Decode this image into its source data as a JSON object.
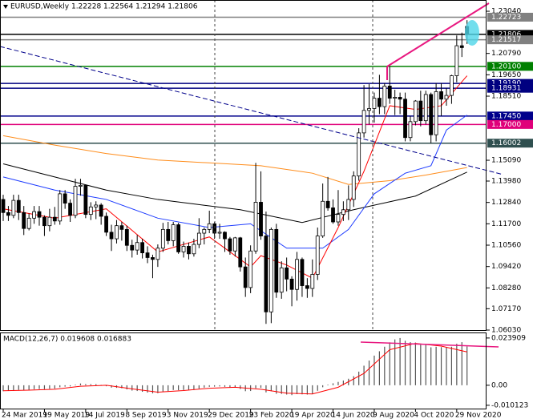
{
  "chart_data": {
    "type": "candlestick",
    "title": "EURUSD,Weekly 1.22228 1.22564 1.21294 1.21806",
    "ylim": [
      1.0603,
      1.2364
    ],
    "yticks": [
      {
        "value": 1.2304,
        "label": "1.23040"
      },
      {
        "value": 1.2079,
        "label": "1.20790"
      },
      {
        "value": 1.1965,
        "label": "1.19650"
      },
      {
        "value": 1.1851,
        "label": "1.18510"
      },
      {
        "value": 1.1509,
        "label": "1.15090"
      },
      {
        "value": 1.1398,
        "label": "1.13980"
      },
      {
        "value": 1.1284,
        "label": "1.12840"
      },
      {
        "value": 1.117,
        "label": "1.11700"
      },
      {
        "value": 1.1056,
        "label": "1.10560"
      },
      {
        "value": 1.0942,
        "label": "1.09420"
      },
      {
        "value": 1.0828,
        "label": "1.08280"
      },
      {
        "value": 1.0717,
        "label": "1.07170"
      },
      {
        "value": 1.0603,
        "label": "1.06030"
      }
    ],
    "levels": [
      {
        "value": 1.22723,
        "color": "#808080"
      },
      {
        "value": 1.21806,
        "color": "#000000"
      },
      {
        "value": 1.21517,
        "color": "#808080"
      },
      {
        "value": 1.201,
        "label": "1.20100",
        "color": "#008000"
      },
      {
        "value": 1.1919,
        "label": "1.19190",
        "color": "#000080"
      },
      {
        "value": 1.18931,
        "color": "#000080"
      },
      {
        "value": 1.1745,
        "label": "1.17450",
        "color": "#00008b"
      },
      {
        "value": 1.17,
        "label": "1.17000",
        "color": "#e0007a"
      },
      {
        "value": 1.16002,
        "color": "#2f4f4f"
      }
    ],
    "xticks": [
      {
        "value": 0,
        "label": "24 Mar 2019"
      },
      {
        "value": 8,
        "label": "19 May 2019"
      },
      {
        "value": 16,
        "label": "14 Jul 2019"
      },
      {
        "value": 24,
        "label": "8 Sep 2019"
      },
      {
        "value": 32,
        "label": "3 Nov 2019"
      },
      {
        "value": 40,
        "label": "29 Dec 2019"
      },
      {
        "value": 48,
        "label": "23 Feb 2020"
      },
      {
        "value": 56,
        "label": "19 Apr 2020"
      },
      {
        "value": 64,
        "label": "14 Jun 2020"
      },
      {
        "value": 72,
        "label": "9 Aug 2020"
      },
      {
        "value": 80,
        "label": "4 Oct 2020"
      },
      {
        "value": 88,
        "label": "29 Nov 2020"
      }
    ],
    "candles": [
      [
        1.13,
        1.1325,
        1.1185,
        1.123
      ],
      [
        1.123,
        1.1265,
        1.1185,
        1.1215
      ],
      [
        1.1215,
        1.1325,
        1.12,
        1.1295
      ],
      [
        1.1295,
        1.1325,
        1.119,
        1.123
      ],
      [
        1.123,
        1.1265,
        1.111,
        1.1145
      ],
      [
        1.1145,
        1.1225,
        1.1135,
        1.12
      ],
      [
        1.12,
        1.1265,
        1.117,
        1.1235
      ],
      [
        1.1235,
        1.1265,
        1.116,
        1.1205
      ],
      [
        1.1205,
        1.1215,
        1.1105,
        1.116
      ],
      [
        1.116,
        1.125,
        1.113,
        1.1205
      ],
      [
        1.1205,
        1.126,
        1.1165,
        1.1185
      ],
      [
        1.1185,
        1.135,
        1.1165,
        1.133
      ],
      [
        1.133,
        1.135,
        1.125,
        1.128
      ],
      [
        1.128,
        1.13,
        1.118,
        1.1215
      ],
      [
        1.1215,
        1.141,
        1.12,
        1.137
      ],
      [
        1.137,
        1.141,
        1.132,
        1.1375
      ],
      [
        1.1375,
        1.138,
        1.12,
        1.122
      ],
      [
        1.122,
        1.1285,
        1.119,
        1.126
      ],
      [
        1.126,
        1.129,
        1.1195,
        1.127
      ],
      [
        1.127,
        1.128,
        1.1165,
        1.121
      ],
      [
        1.121,
        1.123,
        1.1105,
        1.1125
      ],
      [
        1.1125,
        1.1165,
        1.1025,
        1.109
      ],
      [
        1.109,
        1.119,
        1.1065,
        1.116
      ],
      [
        1.116,
        1.118,
        1.108,
        1.114
      ],
      [
        1.114,
        1.116,
        1.1025,
        1.1055
      ],
      [
        1.1055,
        1.1085,
        1.099,
        1.103
      ],
      [
        1.103,
        1.111,
        1.1005,
        1.107
      ],
      [
        1.107,
        1.109,
        1.0985,
        1.1015
      ],
      [
        1.1015,
        1.105,
        1.096,
        1.099
      ],
      [
        1.099,
        1.1005,
        1.088,
        1.098
      ],
      [
        1.098,
        1.106,
        1.094,
        1.104
      ],
      [
        1.104,
        1.1175,
        1.102,
        1.114
      ],
      [
        1.114,
        1.118,
        1.106,
        1.108
      ],
      [
        1.108,
        1.118,
        1.105,
        1.1165
      ],
      [
        1.1165,
        1.1175,
        1.101,
        1.102
      ],
      [
        1.102,
        1.1075,
        1.099,
        1.105
      ],
      [
        1.105,
        1.107,
        1.098,
        1.101
      ],
      [
        1.101,
        1.109,
        1.0995,
        1.106
      ],
      [
        1.106,
        1.12,
        1.104,
        1.112
      ],
      [
        1.112,
        1.115,
        1.106,
        1.114
      ],
      [
        1.114,
        1.124,
        1.112,
        1.117
      ],
      [
        1.117,
        1.118,
        1.109,
        1.112
      ],
      [
        1.112,
        1.117,
        1.109,
        1.1125
      ],
      [
        1.1125,
        1.113,
        1.102,
        1.109
      ],
      [
        1.109,
        1.11,
        1.1005,
        1.1025
      ],
      [
        1.1025,
        1.11,
        1.0995,
        1.1095
      ],
      [
        1.1095,
        1.11,
        1.0915,
        1.094
      ],
      [
        1.094,
        1.099,
        1.078,
        1.083
      ],
      [
        1.083,
        1.1055,
        1.08,
        1.1025
      ],
      [
        1.1025,
        1.1495,
        1.101,
        1.1285
      ],
      [
        1.1285,
        1.145,
        1.1085,
        1.1105
      ],
      [
        1.1105,
        1.1235,
        1.0636,
        1.07
      ],
      [
        1.07,
        1.115,
        1.064,
        1.114
      ],
      [
        1.114,
        1.117,
        1.0775,
        1.0805
      ],
      [
        1.0805,
        1.097,
        1.077,
        1.0935
      ],
      [
        1.0935,
        1.099,
        1.081,
        1.0875
      ],
      [
        1.0875,
        1.089,
        1.073,
        1.082
      ],
      [
        1.082,
        1.102,
        1.076,
        1.098
      ],
      [
        1.098,
        1.099,
        1.078,
        1.084
      ],
      [
        1.084,
        1.088,
        1.0775,
        1.0825
      ],
      [
        1.0825,
        1.098,
        1.078,
        1.09
      ],
      [
        1.09,
        1.115,
        1.087,
        1.1105
      ],
      [
        1.1105,
        1.1385,
        1.1095,
        1.129
      ],
      [
        1.129,
        1.142,
        1.124,
        1.1255
      ],
      [
        1.1255,
        1.13,
        1.117,
        1.118
      ],
      [
        1.118,
        1.135,
        1.116,
        1.122
      ],
      [
        1.122,
        1.129,
        1.1185,
        1.1245
      ],
      [
        1.1245,
        1.1375,
        1.119,
        1.13
      ],
      [
        1.13,
        1.145,
        1.126,
        1.1425
      ],
      [
        1.1425,
        1.168,
        1.14,
        1.1655
      ],
      [
        1.1655,
        1.191,
        1.163,
        1.1775
      ],
      [
        1.1775,
        1.1915,
        1.17,
        1.1785
      ],
      [
        1.1785,
        1.187,
        1.171,
        1.184
      ],
      [
        1.184,
        1.1965,
        1.1755,
        1.1795
      ],
      [
        1.1795,
        1.192,
        1.1755,
        1.1905
      ],
      [
        1.1905,
        1.2011,
        1.181,
        1.184
      ],
      [
        1.184,
        1.1885,
        1.175,
        1.1845
      ],
      [
        1.1845,
        1.187,
        1.1755,
        1.1835
      ],
      [
        1.1835,
        1.187,
        1.161,
        1.163
      ],
      [
        1.163,
        1.1745,
        1.161,
        1.1715
      ],
      [
        1.1715,
        1.183,
        1.1695,
        1.1825
      ],
      [
        1.1825,
        1.188,
        1.169,
        1.172
      ],
      [
        1.172,
        1.188,
        1.17,
        1.186
      ],
      [
        1.186,
        1.187,
        1.16,
        1.1645
      ],
      [
        1.1645,
        1.192,
        1.161,
        1.1875
      ],
      [
        1.1875,
        1.192,
        1.1745,
        1.1835
      ],
      [
        1.1835,
        1.1895,
        1.18,
        1.1855
      ],
      [
        1.1855,
        1.1965,
        1.181,
        1.196
      ],
      [
        1.196,
        1.2175,
        1.1925,
        1.212
      ],
      [
        1.212,
        1.219,
        1.206,
        1.211
      ],
      [
        1.22228,
        1.22564,
        1.21294,
        1.21806
      ]
    ],
    "indicators": [
      {
        "color": "#ff8c1a",
        "x": [
          0,
          10,
          20,
          30,
          40,
          50,
          60,
          67,
          75,
          82,
          90
        ],
        "values": [
          1.164,
          1.159,
          1.1545,
          1.151,
          1.1495,
          1.148,
          1.144,
          1.138,
          1.14,
          1.143,
          1.147
        ]
      },
      {
        "color": "#000000",
        "x": [
          0,
          10,
          20,
          30,
          46,
          58,
          68,
          80,
          90
        ],
        "values": [
          1.149,
          1.142,
          1.135,
          1.13,
          1.1245,
          1.1177,
          1.1245,
          1.1318,
          1.1446
        ]
      },
      {
        "color": "#1e3cff",
        "x": [
          0,
          10,
          20,
          30,
          40,
          48,
          55,
          62,
          67,
          72,
          78,
          83,
          86,
          90
        ],
        "values": [
          1.142,
          1.135,
          1.13,
          1.12,
          1.115,
          1.117,
          1.104,
          1.104,
          1.114,
          1.133,
          1.144,
          1.148,
          1.167,
          1.175
        ]
      },
      {
        "color": "#ff0000",
        "x": [
          0,
          10,
          20,
          30,
          40,
          48,
          50,
          55,
          60,
          65,
          70,
          75,
          80,
          85,
          90
        ],
        "values": [
          1.125,
          1.12,
          1.125,
          1.102,
          1.11,
          1.094,
          1.1,
          1.095,
          1.088,
          1.115,
          1.145,
          1.18,
          1.178,
          1.18,
          1.196
        ]
      }
    ],
    "macd": {
      "label": "MACD(12,26,7) 0.019608 0.016883",
      "ylim": [
        -0.0122,
        0.0267
      ],
      "yticks": [
        0.023909,
        {
          "value": 0,
          "label": "0.00"
        },
        -0.010123
      ],
      "histogram": [
        -0.003,
        -0.0028,
        -0.0025,
        -0.0024,
        -0.0025,
        -0.0023,
        -0.002,
        -0.0019,
        -0.002,
        -0.0018,
        -0.0017,
        -0.001,
        -0.0007,
        -0.0006,
        0.0003,
        0.0009,
        0.0006,
        0.0006,
        0.0006,
        0.0002,
        -0.0005,
        -0.0012,
        -0.0013,
        -0.0015,
        -0.0021,
        -0.0027,
        -0.0029,
        -0.0033,
        -0.0037,
        -0.0041,
        -0.004,
        -0.0032,
        -0.003,
        -0.0024,
        -0.0025,
        -0.0024,
        -0.0025,
        -0.0023,
        -0.0017,
        -0.0012,
        -0.0008,
        -0.0007,
        -0.0006,
        -0.0008,
        -0.0012,
        -0.0012,
        -0.0019,
        -0.003,
        -0.0029,
        -0.0015,
        -0.0013,
        -0.0036,
        -0.003,
        -0.0043,
        -0.0044,
        -0.0047,
        -0.005,
        -0.0045,
        -0.0046,
        -0.0047,
        -0.0043,
        -0.0028,
        -0.001,
        0.0003,
        0.001,
        0.0017,
        0.0024,
        0.0033,
        0.0046,
        0.0069,
        0.0099,
        0.0125,
        0.015,
        0.0172,
        0.0195,
        0.0217,
        0.0232,
        0.0239,
        0.0225,
        0.0218,
        0.0216,
        0.0205,
        0.0207,
        0.0192,
        0.0195,
        0.0193,
        0.0192,
        0.0195,
        0.021,
        0.0218,
        0.019608
      ],
      "signal": {
        "color": "#ff0000",
        "x": [
          0,
          5,
          10,
          15,
          20,
          25,
          30,
          35,
          40,
          45,
          50,
          55,
          60,
          65,
          70,
          75,
          80,
          85,
          90
        ],
        "values": [
          -0.0028,
          -0.0025,
          -0.002,
          -0.0005,
          0.0,
          -0.0018,
          -0.0035,
          -0.0027,
          -0.0015,
          -0.001,
          -0.002,
          -0.004,
          -0.0044,
          -0.001,
          0.006,
          0.018,
          0.0212,
          0.0198,
          0.016883
        ]
      }
    }
  }
}
